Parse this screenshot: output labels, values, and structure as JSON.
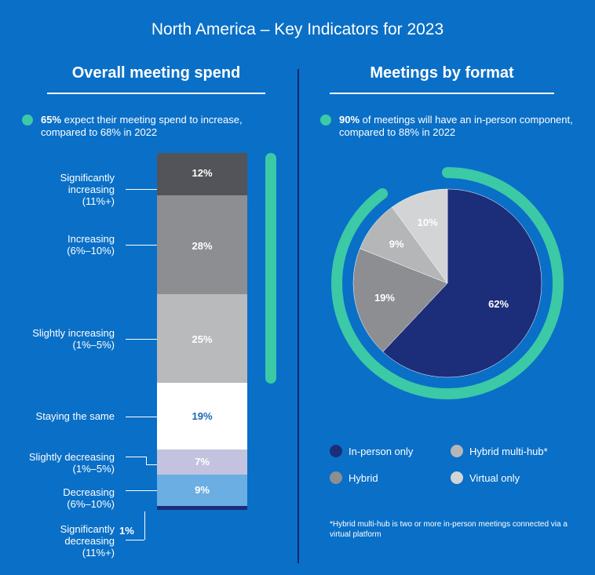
{
  "header": {
    "title": "North America – Key Indicators for 2023"
  },
  "left_panel": {
    "title": "Overall meeting spend",
    "stat_value": "65%",
    "stat_text": " expect their meeting spend to increase, compared to 68% in 2022",
    "accent_color": "#3cc9a6"
  },
  "right_panel": {
    "title": "Meetings by format",
    "stat_value": "90%",
    "stat_text": " of meetings will have an in-person component, compared to 88% in 2022",
    "footnote": "*Hybrid multi-hub is two or more in-person meetings connected via a virtual platform"
  },
  "chart_data": [
    {
      "type": "bar",
      "title": "Overall meeting spend",
      "orientation": "stacked-vertical",
      "categories": [
        "Significantly increasing (11%+)",
        "Increasing (6%–10%)",
        "Slightly increasing (1%–5%)",
        "Staying the same",
        "Slightly decreasing (1%–5%)",
        "Decreasing (6%–10%)",
        "Significantly decreasing (11%+)"
      ],
      "values": [
        12,
        28,
        25,
        19,
        7,
        9,
        1
      ],
      "value_labels": [
        "12%",
        "28%",
        "25%",
        "19%",
        "7%",
        "9%",
        "1%"
      ],
      "category_lines": [
        [
          "Significantly",
          "increasing",
          "(11%+)"
        ],
        [
          "Increasing",
          "(6%–10%)"
        ],
        [
          "Slightly increasing",
          "(1%–5%)"
        ],
        [
          "Staying the same"
        ],
        [
          "Slightly decreasing",
          "(1%–5%)"
        ],
        [
          "Decreasing",
          "(6%–10%)"
        ],
        [
          "Significantly",
          "decreasing",
          "(11%+)"
        ]
      ],
      "colors": [
        "#525459",
        "#8c8e91",
        "#b8babc",
        "#ffffff",
        "#c3c2df",
        "#6aaee3",
        "#1a2d7a"
      ],
      "label_colors": [
        "#ffffff",
        "#ffffff",
        "#ffffff",
        "#1b67b3",
        "#ffffff",
        "#ffffff",
        "#ffffff"
      ]
    },
    {
      "type": "pie",
      "title": "Meetings by format",
      "categories": [
        "In-person only",
        "Hybrid",
        "Hybrid multi-hub*",
        "Virtual only"
      ],
      "values": [
        62,
        19,
        9,
        10
      ],
      "value_labels": [
        "62%",
        "19%",
        "9%",
        "10%"
      ],
      "colors": [
        "#1c2d7a",
        "#8c8e91",
        "#b4b6b8",
        "#d3d4d5"
      ],
      "ring_color": "#3cc9a6",
      "ring_value": 90
    }
  ]
}
